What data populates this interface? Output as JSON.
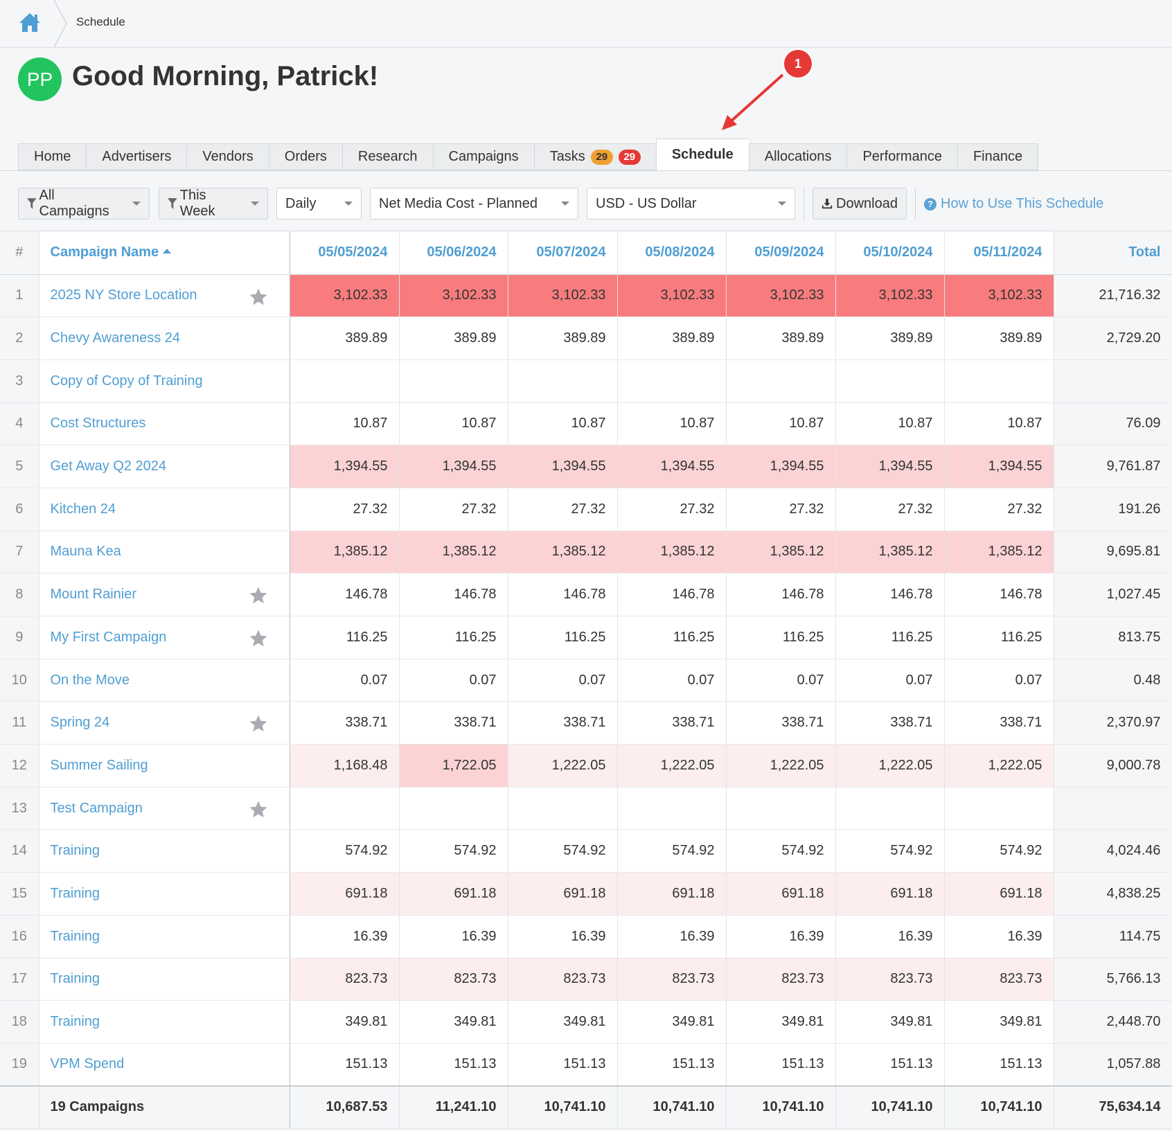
{
  "breadcrumb": {
    "current": "Schedule"
  },
  "header": {
    "avatar_initials": "PP",
    "greeting": "Good Morning, Patrick!"
  },
  "annotation": {
    "marker": "1"
  },
  "tabs": [
    {
      "label": "Home"
    },
    {
      "label": "Advertisers"
    },
    {
      "label": "Vendors"
    },
    {
      "label": "Orders"
    },
    {
      "label": "Research"
    },
    {
      "label": "Campaigns"
    },
    {
      "label": "Tasks",
      "badge_orange": "29",
      "badge_red": "29"
    },
    {
      "label": "Schedule",
      "active": true
    },
    {
      "label": "Allocations"
    },
    {
      "label": "Performance"
    },
    {
      "label": "Finance"
    }
  ],
  "toolbar": {
    "campaign_filter": "All Campaigns",
    "date_filter": "This Week",
    "interval": "Daily",
    "metric": "Net Media Cost - Planned",
    "currency": "USD - US Dollar",
    "download": "Download",
    "help": "How to Use This Schedule"
  },
  "table": {
    "col_num": "#",
    "col_name": "Campaign Name",
    "dates": [
      "05/05/2024",
      "05/06/2024",
      "05/07/2024",
      "05/08/2024",
      "05/09/2024",
      "05/10/2024",
      "05/11/2024"
    ],
    "col_total": "Total",
    "rows": [
      {
        "n": "1",
        "name": "2025 NY Store Location",
        "star": true,
        "vals": [
          "3,102.33",
          "3,102.33",
          "3,102.33",
          "3,102.33",
          "3,102.33",
          "3,102.33",
          "3,102.33"
        ],
        "heat": [
          "strong",
          "strong",
          "strong",
          "strong",
          "strong",
          "strong",
          "strong"
        ],
        "total": "21,716.32"
      },
      {
        "n": "2",
        "name": "Chevy Awareness 24",
        "star": false,
        "vals": [
          "389.89",
          "389.89",
          "389.89",
          "389.89",
          "389.89",
          "389.89",
          "389.89"
        ],
        "heat": [
          "",
          "",
          "",
          "",
          "",
          "",
          ""
        ],
        "total": "2,729.20"
      },
      {
        "n": "3",
        "name": "Copy of Copy of Training",
        "star": false,
        "vals": [
          "",
          "",
          "",
          "",
          "",
          "",
          ""
        ],
        "heat": [
          "",
          "",
          "",
          "",
          "",
          "",
          ""
        ],
        "total": ""
      },
      {
        "n": "4",
        "name": "Cost Structures",
        "star": false,
        "vals": [
          "10.87",
          "10.87",
          "10.87",
          "10.87",
          "10.87",
          "10.87",
          "10.87"
        ],
        "heat": [
          "",
          "",
          "",
          "",
          "",
          "",
          ""
        ],
        "total": "76.09"
      },
      {
        "n": "5",
        "name": "Get Away Q2 2024",
        "star": false,
        "vals": [
          "1,394.55",
          "1,394.55",
          "1,394.55",
          "1,394.55",
          "1,394.55",
          "1,394.55",
          "1,394.55"
        ],
        "heat": [
          "mid",
          "mid",
          "mid",
          "mid",
          "mid",
          "mid",
          "mid"
        ],
        "total": "9,761.87"
      },
      {
        "n": "6",
        "name": "Kitchen 24",
        "star": false,
        "vals": [
          "27.32",
          "27.32",
          "27.32",
          "27.32",
          "27.32",
          "27.32",
          "27.32"
        ],
        "heat": [
          "",
          "",
          "",
          "",
          "",
          "",
          ""
        ],
        "total": "191.26"
      },
      {
        "n": "7",
        "name": "Mauna Kea",
        "star": false,
        "vals": [
          "1,385.12",
          "1,385.12",
          "1,385.12",
          "1,385.12",
          "1,385.12",
          "1,385.12",
          "1,385.12"
        ],
        "heat": [
          "mid",
          "mid",
          "mid",
          "mid",
          "mid",
          "mid",
          "mid"
        ],
        "total": "9,695.81"
      },
      {
        "n": "8",
        "name": "Mount Rainier",
        "star": true,
        "vals": [
          "146.78",
          "146.78",
          "146.78",
          "146.78",
          "146.78",
          "146.78",
          "146.78"
        ],
        "heat": [
          "",
          "",
          "",
          "",
          "",
          "",
          ""
        ],
        "total": "1,027.45"
      },
      {
        "n": "9",
        "name": "My First Campaign",
        "star": true,
        "vals": [
          "116.25",
          "116.25",
          "116.25",
          "116.25",
          "116.25",
          "116.25",
          "116.25"
        ],
        "heat": [
          "",
          "",
          "",
          "",
          "",
          "",
          ""
        ],
        "total": "813.75"
      },
      {
        "n": "10",
        "name": "On the Move",
        "star": false,
        "vals": [
          "0.07",
          "0.07",
          "0.07",
          "0.07",
          "0.07",
          "0.07",
          "0.07"
        ],
        "heat": [
          "",
          "",
          "",
          "",
          "",
          "",
          ""
        ],
        "total": "0.48"
      },
      {
        "n": "11",
        "name": "Spring 24",
        "star": true,
        "vals": [
          "338.71",
          "338.71",
          "338.71",
          "338.71",
          "338.71",
          "338.71",
          "338.71"
        ],
        "heat": [
          "",
          "",
          "",
          "",
          "",
          "",
          ""
        ],
        "total": "2,370.97"
      },
      {
        "n": "12",
        "name": "Summer Sailing",
        "star": false,
        "vals": [
          "1,168.48",
          "1,722.05",
          "1,222.05",
          "1,222.05",
          "1,222.05",
          "1,222.05",
          "1,222.05"
        ],
        "heat": [
          "light",
          "mid",
          "light",
          "light",
          "light",
          "light",
          "light"
        ],
        "total": "9,000.78"
      },
      {
        "n": "13",
        "name": "Test Campaign",
        "star": true,
        "vals": [
          "",
          "",
          "",
          "",
          "",
          "",
          ""
        ],
        "heat": [
          "",
          "",
          "",
          "",
          "",
          "",
          ""
        ],
        "total": ""
      },
      {
        "n": "14",
        "name": "Training",
        "star": false,
        "vals": [
          "574.92",
          "574.92",
          "574.92",
          "574.92",
          "574.92",
          "574.92",
          "574.92"
        ],
        "heat": [
          "",
          "",
          "",
          "",
          "",
          "",
          ""
        ],
        "total": "4,024.46"
      },
      {
        "n": "15",
        "name": "Training",
        "star": false,
        "vals": [
          "691.18",
          "691.18",
          "691.18",
          "691.18",
          "691.18",
          "691.18",
          "691.18"
        ],
        "heat": [
          "light",
          "light",
          "light",
          "light",
          "light",
          "light",
          "light"
        ],
        "total": "4,838.25"
      },
      {
        "n": "16",
        "name": "Training",
        "star": false,
        "vals": [
          "16.39",
          "16.39",
          "16.39",
          "16.39",
          "16.39",
          "16.39",
          "16.39"
        ],
        "heat": [
          "",
          "",
          "",
          "",
          "",
          "",
          ""
        ],
        "total": "114.75"
      },
      {
        "n": "17",
        "name": "Training",
        "star": false,
        "vals": [
          "823.73",
          "823.73",
          "823.73",
          "823.73",
          "823.73",
          "823.73",
          "823.73"
        ],
        "heat": [
          "light",
          "light",
          "light",
          "light",
          "light",
          "light",
          "light"
        ],
        "total": "5,766.13"
      },
      {
        "n": "18",
        "name": "Training",
        "star": false,
        "vals": [
          "349.81",
          "349.81",
          "349.81",
          "349.81",
          "349.81",
          "349.81",
          "349.81"
        ],
        "heat": [
          "",
          "",
          "",
          "",
          "",
          "",
          ""
        ],
        "total": "2,448.70"
      },
      {
        "n": "19",
        "name": "VPM Spend",
        "star": false,
        "vals": [
          "151.13",
          "151.13",
          "151.13",
          "151.13",
          "151.13",
          "151.13",
          "151.13"
        ],
        "heat": [
          "",
          "",
          "",
          "",
          "",
          "",
          ""
        ],
        "total": "1,057.88"
      }
    ],
    "footer": {
      "label": "19 Campaigns",
      "vals": [
        "10,687.53",
        "11,241.10",
        "10,741.10",
        "10,741.10",
        "10,741.10",
        "10,741.10",
        "10,741.10"
      ],
      "total": "75,634.14"
    }
  }
}
